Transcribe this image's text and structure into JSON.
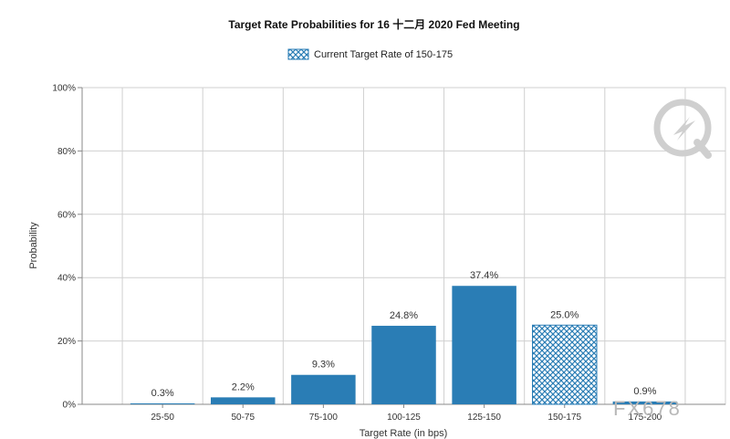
{
  "chart_data": {
    "type": "bar",
    "title": "Target Rate Probabilities for 16 十二月 2020 Fed Meeting",
    "legend": {
      "label": "Current Target Rate of 150-175",
      "placement": "top-center"
    },
    "xlabel": "Target Rate (in bps)",
    "ylabel": "Probability",
    "categories": [
      "25-50",
      "50-75",
      "75-100",
      "100-125",
      "125-150",
      "150-175",
      "175-200"
    ],
    "values": [
      0.3,
      2.2,
      9.3,
      24.8,
      37.4,
      25.0,
      0.9
    ],
    "data_labels": [
      "0.3%",
      "2.2%",
      "9.3%",
      "24.8%",
      "37.4%",
      "25.0%",
      "0.9%"
    ],
    "current_category": "150-175",
    "ylim": [
      0,
      100
    ],
    "yticks": [
      0,
      20,
      40,
      60,
      80,
      100
    ],
    "ytick_labels": [
      "0%",
      "20%",
      "40%",
      "60%",
      "80%",
      "100%"
    ],
    "grid": true,
    "colors": {
      "bar": "#2a7db5",
      "current": "#2a7db5",
      "grid": "#d0d0d0"
    }
  },
  "watermark": {
    "text": "FX678"
  }
}
